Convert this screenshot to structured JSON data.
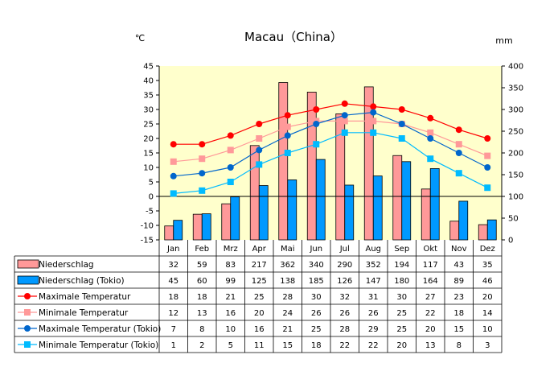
{
  "chart_data": {
    "type": "bar+line",
    "title": "Macau（China）",
    "left_unit": "℃",
    "right_unit": "mm",
    "categories": [
      "Jan",
      "Feb",
      "Mrz",
      "Apr",
      "Mai",
      "Jun",
      "Jul",
      "Aug",
      "Sep",
      "Okt",
      "Nov",
      "Dez"
    ],
    "ylim_left": [
      -15,
      45
    ],
    "yticks_left": [
      -15,
      -10,
      -5,
      0,
      5,
      10,
      15,
      20,
      25,
      30,
      35,
      40,
      45
    ],
    "ylim_right": [
      0,
      400
    ],
    "yticks_right": [
      0,
      50,
      100,
      150,
      200,
      250,
      300,
      350,
      400
    ],
    "grid": false,
    "series": [
      {
        "name": "Niederschlag",
        "kind": "bar",
        "axis": "right",
        "color": "#FF9999",
        "values": [
          32,
          59,
          83,
          217,
          362,
          340,
          290,
          352,
          194,
          117,
          43,
          35
        ]
      },
      {
        "name": "Niederschlag (Tokio)",
        "kind": "bar",
        "axis": "right",
        "color": "#0099FF",
        "values": [
          45,
          60,
          99,
          125,
          138,
          185,
          126,
          147,
          180,
          164,
          89,
          46
        ]
      },
      {
        "name": "Maximale Temperatur",
        "kind": "line",
        "marker": "circle",
        "axis": "left",
        "color": "#FF0000",
        "values": [
          18,
          18,
          21,
          25,
          28,
          30,
          32,
          31,
          30,
          27,
          23,
          20
        ]
      },
      {
        "name": "Minimale Temperatur",
        "kind": "line",
        "marker": "square",
        "axis": "left",
        "color": "#FF9999",
        "values": [
          12,
          13,
          16,
          20,
          24,
          26,
          26,
          26,
          25,
          22,
          18,
          14
        ]
      },
      {
        "name": "Maximale Temperatur (Tokio)",
        "kind": "line",
        "marker": "circle",
        "axis": "left",
        "color": "#0066CC",
        "values": [
          7,
          8,
          10,
          16,
          21,
          25,
          28,
          29,
          25,
          20,
          15,
          10
        ]
      },
      {
        "name": "Minimale Temperatur (Tokio)",
        "kind": "line",
        "marker": "square",
        "axis": "left",
        "color": "#00BBFF",
        "values": [
          1,
          2,
          5,
          11,
          15,
          18,
          22,
          22,
          20,
          13,
          8,
          3
        ]
      }
    ]
  }
}
